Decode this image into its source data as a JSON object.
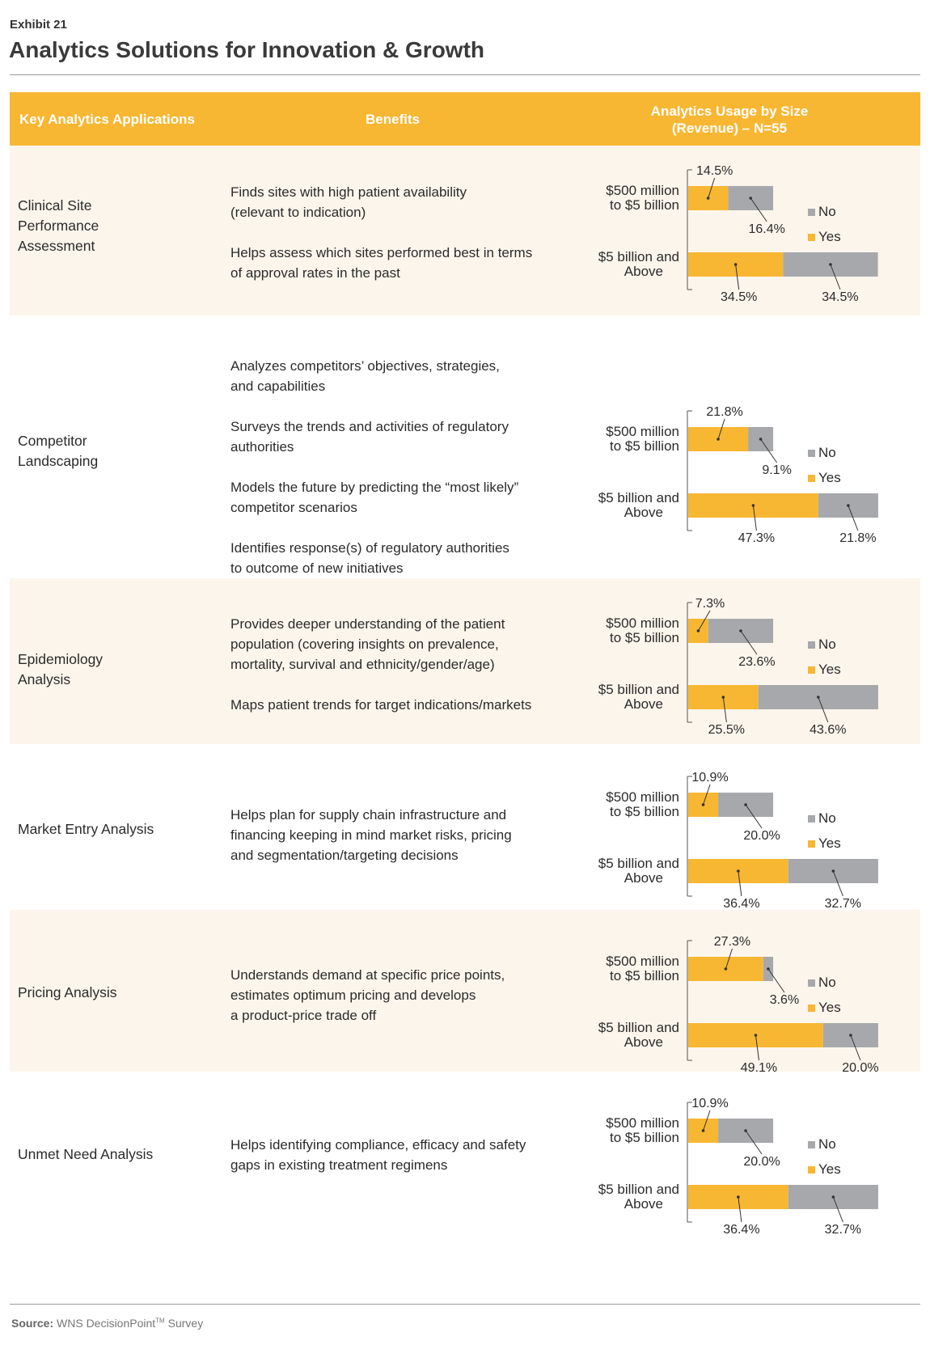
{
  "header": {
    "exhibit": "Exhibit 21",
    "title": "Analytics Solutions for Innovation & Growth",
    "col_applications": "Key Analytics Applications",
    "col_benefits": "Benefits",
    "col_usage_line1": "Analytics Usage by Size",
    "col_usage_line2": "(Revenue) – N=55"
  },
  "colors": {
    "yes": "#f7b733",
    "no": "#a6a8ab",
    "header_bg": "#f7b733",
    "shaded_row": "#fcf5ec"
  },
  "legend": {
    "no": "No",
    "yes": "Yes"
  },
  "categories": [
    {
      "line1": "$500 million",
      "line2": "to $5 billion"
    },
    {
      "line1": "$5 billion and",
      "line2": "Above"
    }
  ],
  "rows": [
    {
      "name_lines": [
        "Clinical Site",
        "Performance",
        "Assessment"
      ],
      "benefits": [
        [
          "Finds sites with high patient availability",
          "(relevant to indication)"
        ],
        [
          "Helps assess which sites performed best in terms",
          "of approval rates in the past"
        ]
      ]
    },
    {
      "name_lines": [
        "Competitor",
        "Landscaping"
      ],
      "benefits": [
        [
          "Analyzes competitors’ objectives, strategies,",
          "and capabilities"
        ],
        [
          "Surveys the trends and activities of regulatory",
          "authorities"
        ],
        [
          "Models the future by predicting the “most likely”",
          "competitor scenarios"
        ],
        [
          "Identifies response(s) of regulatory authorities",
          "to outcome of new initiatives"
        ]
      ]
    },
    {
      "name_lines": [
        "Epidemiology",
        "Analysis"
      ],
      "benefits": [
        [
          "Provides deeper understanding of the patient",
          "population (covering insights on prevalence,",
          "mortality, survival and ethnicity/gender/age)"
        ],
        [
          "Maps patient trends for target indications/markets"
        ]
      ]
    },
    {
      "name_lines": [
        "Market Entry Analysis"
      ],
      "benefits": [
        [
          "Helps plan for supply chain infrastructure and",
          "financing keeping in mind market risks, pricing",
          "and segmentation/targeting decisions"
        ]
      ]
    },
    {
      "name_lines": [
        "Pricing Analysis"
      ],
      "benefits": [
        [
          "Understands demand at specific price points,",
          "estimates optimum pricing and develops",
          "a product-price trade off"
        ]
      ]
    },
    {
      "name_lines": [
        "Unmet Need Analysis"
      ],
      "benefits": [
        [
          "Helps identifying compliance, efficacy and safety",
          "gaps in existing treatment regimens"
        ]
      ]
    }
  ],
  "chart_data": [
    {
      "type": "bar",
      "stacked": true,
      "orientation": "horizontal",
      "application": "Clinical Site Performance Assessment",
      "categories": [
        "$500 million to $5 billion",
        "$5 billion and Above"
      ],
      "series": [
        {
          "name": "Yes",
          "values": [
            14.5,
            34.5
          ]
        },
        {
          "name": "No",
          "values": [
            16.4,
            34.5
          ]
        }
      ],
      "labels": [
        [
          "14.5%",
          "16.4%"
        ],
        [
          "34.5%",
          "34.5%"
        ]
      ],
      "unit": "%",
      "legend": "right"
    },
    {
      "type": "bar",
      "stacked": true,
      "orientation": "horizontal",
      "application": "Competitor Landscaping",
      "categories": [
        "$500 million to $5 billion",
        "$5 billion and Above"
      ],
      "series": [
        {
          "name": "Yes",
          "values": [
            21.8,
            47.3
          ]
        },
        {
          "name": "No",
          "values": [
            9.1,
            21.8
          ]
        }
      ],
      "labels": [
        [
          "21.8%",
          "9.1%"
        ],
        [
          "47.3%",
          "21.8%"
        ]
      ],
      "unit": "%",
      "legend": "right"
    },
    {
      "type": "bar",
      "stacked": true,
      "orientation": "horizontal",
      "application": "Epidemiology Analysis",
      "categories": [
        "$500 million to $5 billion",
        "$5 billion and Above"
      ],
      "series": [
        {
          "name": "Yes",
          "values": [
            7.3,
            25.5
          ]
        },
        {
          "name": "No",
          "values": [
            23.6,
            43.6
          ]
        }
      ],
      "labels": [
        [
          "7.3%",
          "23.6%"
        ],
        [
          "25.5%",
          "43.6%"
        ]
      ],
      "unit": "%",
      "legend": "right"
    },
    {
      "type": "bar",
      "stacked": true,
      "orientation": "horizontal",
      "application": "Market Entry Analysis",
      "categories": [
        "$500 million to $5 billion",
        "$5 billion and Above"
      ],
      "series": [
        {
          "name": "Yes",
          "values": [
            10.9,
            36.4
          ]
        },
        {
          "name": "No",
          "values": [
            20.0,
            32.7
          ]
        }
      ],
      "labels": [
        [
          "10.9%",
          "20.0%"
        ],
        [
          "36.4%",
          "32.7%"
        ]
      ],
      "unit": "%",
      "legend": "right"
    },
    {
      "type": "bar",
      "stacked": true,
      "orientation": "horizontal",
      "application": "Pricing Analysis",
      "categories": [
        "$500 million to $5 billion",
        "$5 billion and Above"
      ],
      "series": [
        {
          "name": "Yes",
          "values": [
            27.3,
            49.1
          ]
        },
        {
          "name": "No",
          "values": [
            3.6,
            20.0
          ]
        }
      ],
      "labels": [
        [
          "27.3%",
          "3.6%"
        ],
        [
          "49.1%",
          "20.0%"
        ]
      ],
      "unit": "%",
      "legend": "right"
    },
    {
      "type": "bar",
      "stacked": true,
      "orientation": "horizontal",
      "application": "Unmet Need Analysis",
      "categories": [
        "$500 million to $5 billion",
        "$5 billion and Above"
      ],
      "series": [
        {
          "name": "Yes",
          "values": [
            10.9,
            36.4
          ]
        },
        {
          "name": "No",
          "values": [
            20.0,
            32.7
          ]
        }
      ],
      "labels": [
        [
          "10.9%",
          "20.0%"
        ],
        [
          "36.4%",
          "32.7%"
        ]
      ],
      "unit": "%",
      "legend": "right"
    }
  ],
  "source": {
    "label": "Source:",
    "text": "WNS DecisionPoint",
    "tm": "TM",
    "suffix": " Survey"
  }
}
